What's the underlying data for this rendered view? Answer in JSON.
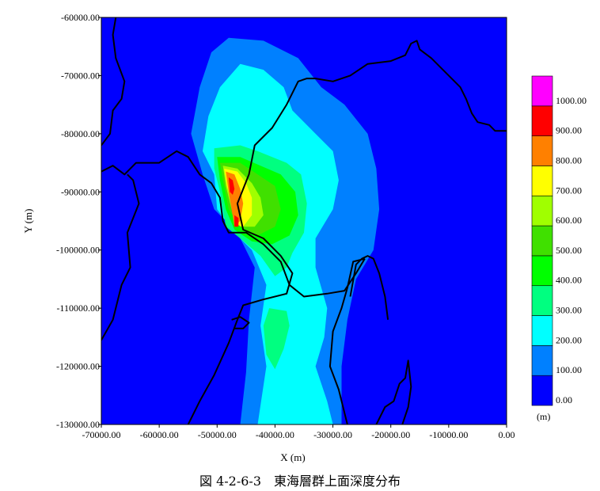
{
  "caption": "図 4-2-6-3　東海層群上面深度分布",
  "chart_data": {
    "type": "heatmap",
    "subtype": "filled-contour-map",
    "xlabel": "X (m)",
    "ylabel": "Y (m)",
    "xlim": [
      -70000,
      0
    ],
    "ylim": [
      -130000,
      -60000
    ],
    "x_tick_values": [
      -70000,
      -60000,
      -50000,
      -40000,
      -30000,
      -20000,
      -10000,
      0
    ],
    "x_tick_labels": [
      "-70000.00",
      "-60000.00",
      "-50000.00",
      "-40000.00",
      "-30000.00",
      "-20000.00",
      "-10000.00",
      "0.00"
    ],
    "y_tick_values": [
      -60000,
      -70000,
      -80000,
      -90000,
      -100000,
      -110000,
      -120000,
      -130000
    ],
    "y_tick_labels": [
      "-60000.00",
      "-70000.00",
      "-80000.00",
      "-90000.00",
      "-100000.00",
      "-110000.00",
      "-120000.00",
      "-130000.00"
    ],
    "colorbar": {
      "unit": "(m)",
      "levels": [
        0,
        100,
        200,
        300,
        400,
        500,
        600,
        700,
        800,
        900,
        1000
      ],
      "level_labels": [
        "0.00",
        "100.00",
        "200.00",
        "300.00",
        "400.00",
        "500.00",
        "600.00",
        "700.00",
        "800.00",
        "900.00",
        "1000.00"
      ],
      "colors": [
        "#0000ff",
        "#0080ff",
        "#00ffff",
        "#00ff80",
        "#00ff00",
        "#40e000",
        "#a0ff00",
        "#ffff00",
        "#ff8000",
        "#ff0000",
        "#ff00ff"
      ]
    },
    "contour_bands": [
      {
        "band": "100-200",
        "color": "#0080ff",
        "points": [
          [
            -48000,
            -63500
          ],
          [
            -42000,
            -64000
          ],
          [
            -36000,
            -67000
          ],
          [
            -32000,
            -72000
          ],
          [
            -28000,
            -75000
          ],
          [
            -24000,
            -80000
          ],
          [
            -22500,
            -86000
          ],
          [
            -22000,
            -93000
          ],
          [
            -23000,
            -100000
          ],
          [
            -26000,
            -105000
          ],
          [
            -27500,
            -112000
          ],
          [
            -28500,
            -120000
          ],
          [
            -28500,
            -130000
          ],
          [
            -46000,
            -130000
          ],
          [
            -45000,
            -121000
          ],
          [
            -44500,
            -112000
          ],
          [
            -43500,
            -103000
          ],
          [
            -46500,
            -97000
          ],
          [
            -50500,
            -93000
          ],
          [
            -52500,
            -87000
          ],
          [
            -54500,
            -80000
          ],
          [
            -53000,
            -72000
          ],
          [
            -51000,
            -66000
          ]
        ]
      },
      {
        "band": "200-300",
        "color": "#00ffff",
        "points": [
          [
            -46000,
            -68000
          ],
          [
            -42000,
            -69000
          ],
          [
            -38500,
            -72000
          ],
          [
            -37000,
            -76000
          ],
          [
            -33000,
            -80000
          ],
          [
            -30000,
            -83000
          ],
          [
            -29000,
            -88000
          ],
          [
            -30000,
            -93000
          ],
          [
            -33000,
            -98000
          ],
          [
            -33000,
            -103000
          ],
          [
            -31000,
            -110000
          ],
          [
            -31500,
            -115000
          ],
          [
            -33000,
            -120000
          ],
          [
            -31000,
            -126000
          ],
          [
            -30000,
            -130000
          ],
          [
            -43000,
            -130000
          ],
          [
            -41500,
            -120000
          ],
          [
            -42500,
            -113000
          ],
          [
            -41500,
            -106000
          ],
          [
            -44000,
            -100000
          ],
          [
            -47000,
            -97000
          ],
          [
            -50000,
            -93000
          ],
          [
            -50500,
            -87000
          ],
          [
            -52500,
            -83000
          ],
          [
            -51500,
            -77000
          ],
          [
            -49500,
            -72000
          ]
        ]
      },
      {
        "band": "300-400",
        "color": "#00ff80",
        "points": [
          [
            -50500,
            -82500
          ],
          [
            -46000,
            -82000
          ],
          [
            -43000,
            -83000
          ],
          [
            -38000,
            -85000
          ],
          [
            -35500,
            -87000
          ],
          [
            -34500,
            -92000
          ],
          [
            -35000,
            -97000
          ],
          [
            -37000,
            -100500
          ],
          [
            -38000,
            -103000
          ],
          [
            -40000,
            -104500
          ],
          [
            -42500,
            -101000
          ],
          [
            -46000,
            -98000
          ],
          [
            -48500,
            -96000
          ],
          [
            -49500,
            -90000
          ],
          [
            -50500,
            -86000
          ]
        ]
      },
      {
        "band": "300-400",
        "color": "#00ff80",
        "points": [
          [
            -41000,
            -110000
          ],
          [
            -38000,
            -110500
          ],
          [
            -37500,
            -113000
          ],
          [
            -38500,
            -117000
          ],
          [
            -40000,
            -120500
          ],
          [
            -41500,
            -118000
          ],
          [
            -42000,
            -113000
          ]
        ]
      },
      {
        "band": "400-500",
        "color": "#00ff00",
        "points": [
          [
            -50000,
            -84000
          ],
          [
            -46000,
            -84000
          ],
          [
            -42500,
            -85500
          ],
          [
            -39000,
            -87000
          ],
          [
            -36500,
            -90000
          ],
          [
            -36000,
            -94000
          ],
          [
            -37500,
            -97500
          ],
          [
            -40500,
            -99000
          ],
          [
            -44000,
            -98500
          ],
          [
            -47000,
            -96500
          ],
          [
            -48500,
            -93000
          ],
          [
            -49500,
            -88000
          ]
        ]
      },
      {
        "band": "500-600",
        "color": "#40e000",
        "points": [
          [
            -49500,
            -85000
          ],
          [
            -46000,
            -85000
          ],
          [
            -43000,
            -87000
          ],
          [
            -40000,
            -89000
          ],
          [
            -39000,
            -93000
          ],
          [
            -40000,
            -96000
          ],
          [
            -43000,
            -97500
          ],
          [
            -46000,
            -96000
          ],
          [
            -48000,
            -93000
          ],
          [
            -49000,
            -88000
          ]
        ]
      },
      {
        "band": "600-700",
        "color": "#a0ff00",
        "points": [
          [
            -49000,
            -85500
          ],
          [
            -46500,
            -86000
          ],
          [
            -44000,
            -88500
          ],
          [
            -42500,
            -91000
          ],
          [
            -42000,
            -94000
          ],
          [
            -43500,
            -96000
          ],
          [
            -46000,
            -96000
          ],
          [
            -47500,
            -93000
          ],
          [
            -48500,
            -89000
          ]
        ]
      },
      {
        "band": "700-800",
        "color": "#ffff00",
        "points": [
          [
            -48800,
            -86000
          ],
          [
            -46500,
            -86500
          ],
          [
            -45000,
            -88500
          ],
          [
            -44000,
            -91000
          ],
          [
            -44000,
            -94000
          ],
          [
            -45500,
            -96000
          ],
          [
            -47000,
            -95500
          ],
          [
            -47500,
            -92000
          ],
          [
            -48300,
            -89000
          ]
        ]
      },
      {
        "band": "800-900",
        "color": "#ff8000",
        "points": [
          [
            -48500,
            -86500
          ],
          [
            -47000,
            -87000
          ],
          [
            -46000,
            -89500
          ],
          [
            -45500,
            -92000
          ],
          [
            -46000,
            -95000
          ],
          [
            -47000,
            -96000
          ],
          [
            -47500,
            -93000
          ],
          [
            -48000,
            -90000
          ]
        ]
      },
      {
        "band": "900-1000",
        "color": "#ff0000",
        "points": [
          [
            -48000,
            -87500
          ],
          [
            -47300,
            -88000
          ],
          [
            -47000,
            -89500
          ],
          [
            -47300,
            -90500
          ],
          [
            -47800,
            -90000
          ]
        ]
      },
      {
        "band": "900-1000",
        "color": "#ff0000",
        "points": [
          [
            -47000,
            -94000
          ],
          [
            -46300,
            -94500
          ],
          [
            -46300,
            -96000
          ],
          [
            -47000,
            -96000
          ]
        ]
      },
      {
        "band": "100-200",
        "color": "#0080ff",
        "points": [
          [
            -29000,
            -85000
          ],
          [
            -28000,
            -84500
          ],
          [
            -27500,
            -86000
          ],
          [
            -28500,
            -86500
          ]
        ]
      }
    ],
    "boundary_lines": [
      {
        "name": "coastline-northwest",
        "points": [
          [
            -70000,
            -82000
          ],
          [
            -68500,
            -80000
          ],
          [
            -68000,
            -76000
          ],
          [
            -66500,
            -74000
          ],
          [
            -66000,
            -71000
          ],
          [
            -67500,
            -67000
          ],
          [
            -68000,
            -63000
          ],
          [
            -67500,
            -60000
          ]
        ]
      },
      {
        "name": "coastline-west-bay",
        "points": [
          [
            -70000,
            -86500
          ],
          [
            -68000,
            -85500
          ],
          [
            -66000,
            -87000
          ],
          [
            -64000,
            -85000
          ],
          [
            -60000,
            -85000
          ],
          [
            -57000,
            -83000
          ],
          [
            -55000,
            -84000
          ],
          [
            -53000,
            -87000
          ],
          [
            -51000,
            -88500
          ],
          [
            -49500,
            -91000
          ],
          [
            -49000,
            -95000
          ],
          [
            -48000,
            -97000
          ],
          [
            -45000,
            -97000
          ],
          [
            -42000,
            -99000
          ],
          [
            -39000,
            -102000
          ],
          [
            -37500,
            -106000
          ],
          [
            -35000,
            -108000
          ],
          [
            -31000,
            -107500
          ],
          [
            -28000,
            -107000
          ],
          [
            -26000,
            -104000
          ],
          [
            -24500,
            -101500
          ]
        ]
      },
      {
        "name": "coastline-west-south",
        "points": [
          [
            -70000,
            -115500
          ],
          [
            -68000,
            -112000
          ],
          [
            -66500,
            -106000
          ],
          [
            -65000,
            -103000
          ],
          [
            -65500,
            -97000
          ],
          [
            -63500,
            -92000
          ],
          [
            -64500,
            -88000
          ],
          [
            -65500,
            -87000
          ]
        ]
      },
      {
        "name": "prefecture-boundary",
        "points": [
          [
            -55000,
            -130000
          ],
          [
            -53000,
            -126000
          ],
          [
            -50500,
            -121500
          ],
          [
            -48000,
            -116000
          ],
          [
            -46500,
            -112000
          ],
          [
            -45500,
            -109500
          ],
          [
            -42000,
            -108500
          ],
          [
            -38000,
            -107500
          ],
          [
            -37000,
            -104000
          ],
          [
            -39000,
            -101000
          ],
          [
            -42000,
            -98000
          ],
          [
            -45500,
            -96500
          ],
          [
            -46500,
            -92000
          ],
          [
            -44500,
            -87000
          ],
          [
            -43500,
            -82000
          ],
          [
            -40500,
            -79000
          ],
          [
            -38000,
            -75000
          ],
          [
            -36000,
            -71000
          ],
          [
            -34500,
            -70500
          ],
          [
            -33000,
            -70500
          ],
          [
            -30000,
            -71000
          ],
          [
            -27000,
            -70000
          ],
          [
            -24000,
            -68000
          ],
          [
            -20000,
            -67500
          ],
          [
            -17500,
            -66500
          ],
          [
            -16500,
            -64500
          ],
          [
            -15500,
            -64000
          ],
          [
            -15000,
            -65500
          ],
          [
            -13000,
            -67000
          ],
          [
            -11000,
            -69000
          ],
          [
            -8000,
            -72000
          ],
          [
            -7000,
            -74000
          ],
          [
            -6000,
            -76500
          ],
          [
            -5000,
            -78000
          ],
          [
            -3000,
            -78500
          ],
          [
            -2000,
            -79500
          ],
          [
            0,
            -79500
          ]
        ]
      },
      {
        "name": "bay-coast-east",
        "points": [
          [
            -24500,
            -101500
          ],
          [
            -26500,
            -102000
          ],
          [
            -27500,
            -106500
          ],
          [
            -28500,
            -110000
          ],
          [
            -30000,
            -114000
          ],
          [
            -30500,
            -120000
          ],
          [
            -29000,
            -124000
          ],
          [
            -28000,
            -128000
          ],
          [
            -27500,
            -130000
          ]
        ]
      },
      {
        "name": "bay-islet",
        "points": [
          [
            -47500,
            -112000
          ],
          [
            -46000,
            -111500
          ],
          [
            -44500,
            -112500
          ],
          [
            -45500,
            -113500
          ],
          [
            -47000,
            -113500
          ]
        ]
      },
      {
        "name": "peninsula",
        "points": [
          [
            -22500,
            -130000
          ],
          [
            -21000,
            -127000
          ],
          [
            -19500,
            -126000
          ],
          [
            -18500,
            -123000
          ],
          [
            -17500,
            -122000
          ],
          [
            -17000,
            -119000
          ],
          [
            -16500,
            -123500
          ],
          [
            -17000,
            -127000
          ],
          [
            -18000,
            -130000
          ]
        ]
      },
      {
        "name": "bay-edge-north",
        "points": [
          [
            -27000,
            -108000
          ],
          [
            -26000,
            -102500
          ],
          [
            -25000,
            -101500
          ],
          [
            -24000,
            -101000
          ],
          [
            -23000,
            -101500
          ],
          [
            -22000,
            -104000
          ],
          [
            -21000,
            -108000
          ],
          [
            -20500,
            -112000
          ]
        ]
      }
    ]
  }
}
